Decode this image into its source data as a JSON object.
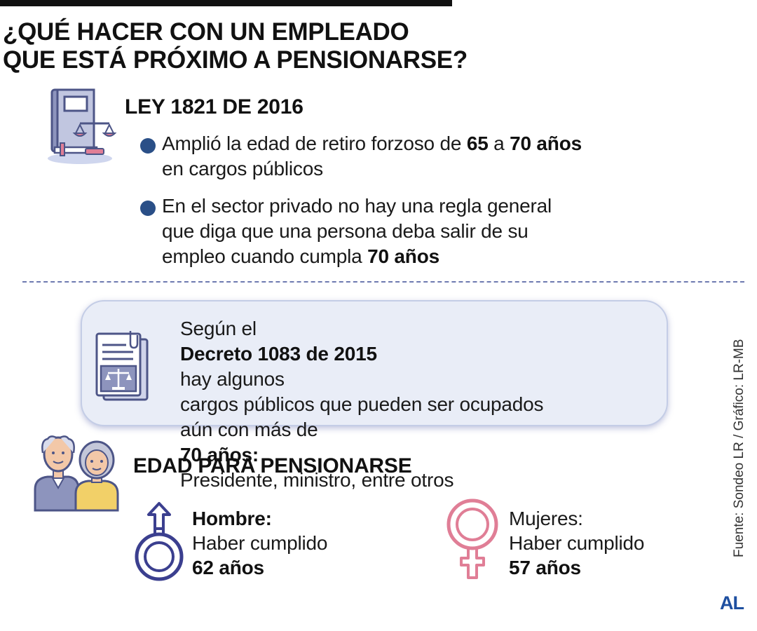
{
  "title": {
    "line1": "¿QUÉ HACER CON UN EMPLEADO",
    "line2": "QUE ESTÁ PRÓXIMO A PENSIONARSE?"
  },
  "law": {
    "heading": "LEY 1821 DE 2016",
    "bullet1": {
      "t1": "Amplió la edad de retiro forzoso de ",
      "b1": "65",
      "t2": " a ",
      "b2": "70 años",
      "t3": "en cargos públicos"
    },
    "bullet2": {
      "t1": "En el sector privado no hay una regla general",
      "t2": "que diga que una persona deba salir de su",
      "t3": "empleo cuando cumpla ",
      "b1": "70 años"
    }
  },
  "decree": {
    "l1_pre": "Según el ",
    "l1_bold": "Decreto 1083 de 2015",
    "l1_post": " hay algunos",
    "l2": "cargos públicos que pueden ser ocupados",
    "l3_pre": "aún con más de ",
    "l3_bold": "70 años:",
    "l4": "Presidente, ministro, entre otros"
  },
  "pension": {
    "heading": "EDAD PARA PENSIONARSE",
    "men": {
      "label": "Hombre:",
      "desc": "Haber cumplido",
      "age": "62 años"
    },
    "women": {
      "label": "Mujeres:",
      "desc": "Haber cumplido",
      "age": "57 años"
    }
  },
  "source": "Fuente: Sondeo LR / Gráfico: LR-MB",
  "logo": "AL",
  "colors": {
    "bullet": "#2a4f87",
    "male_symbol": "#3b3f8f",
    "female_symbol": "#e07e96",
    "box_bg": "#e9edf7",
    "logo": "#1e4fa0"
  },
  "icons": {
    "law": "law-book-scales-icon",
    "decree": "legal-document-icon",
    "elderly": "elderly-couple-icon",
    "male": "male-symbol-icon",
    "female": "female-symbol-icon"
  }
}
